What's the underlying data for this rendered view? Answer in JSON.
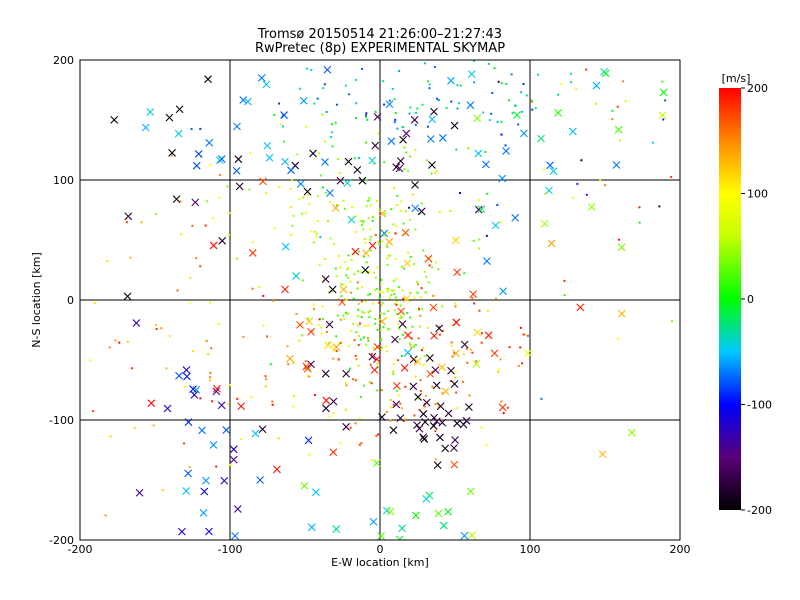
{
  "chart_data": {
    "type": "scatter",
    "title": "Tromsø 20150514 21:26:00–21:27:43",
    "subtitle": "RwPretec (8p) EXPERIMENTAL SKYMAP",
    "xlabel": "E-W location [km]",
    "ylabel": "N-S location [km]",
    "xlim": [
      -200,
      200
    ],
    "ylim": [
      -200,
      200
    ],
    "xticks": [
      "-200",
      "-100",
      "0",
      "100",
      "200"
    ],
    "yticks": [
      "-200",
      "-100",
      "0",
      "100",
      "200"
    ],
    "grid": true,
    "colorbar": {
      "label": "[m/s]",
      "range": [
        -200,
        200
      ],
      "ticks": [
        "200",
        "100",
        "0",
        "-100",
        "-200"
      ],
      "colormap": "rainbow: black-purple-blue-cyan-green-yellow-orange-red"
    },
    "marker_types": [
      "x (large cross)",
      "dot (small marker)"
    ],
    "clusters": [
      {
        "marker": "dot",
        "count": 160,
        "cx": 0,
        "cy": 40,
        "sx": 25,
        "sy": 45,
        "vmin": 10,
        "vmax": 80
      },
      {
        "marker": "dot",
        "count": 90,
        "cx": -5,
        "cy": -15,
        "sx": 20,
        "sy": 25,
        "vmin": -10,
        "vmax": 90
      },
      {
        "marker": "dot",
        "count": 110,
        "cx": 20,
        "cy": 165,
        "sx": 55,
        "sy": 25,
        "vmin": -90,
        "vmax": 10
      },
      {
        "marker": "dot",
        "count": 55,
        "cx": -60,
        "cy": 80,
        "sx": 40,
        "sy": 40,
        "vmin": 30,
        "vmax": 120
      },
      {
        "marker": "dot",
        "count": 110,
        "cx": -15,
        "cy": -60,
        "sx": 55,
        "sy": 35,
        "vmin": 80,
        "vmax": 180
      },
      {
        "marker": "dot",
        "count": 70,
        "cx": 40,
        "cy": -40,
        "sx": 45,
        "sy": 40,
        "vmin": 140,
        "vmax": 200
      },
      {
        "marker": "dot",
        "count": 55,
        "cx": 130,
        "cy": 110,
        "sx": 60,
        "sy": 70,
        "vmin": -200,
        "vmax": 200
      },
      {
        "marker": "dot",
        "count": 45,
        "cx": -150,
        "cy": -50,
        "sx": 35,
        "sy": 80,
        "vmin": 100,
        "vmax": 200
      },
      {
        "marker": "x",
        "count": 28,
        "cx": 35,
        "cy": -100,
        "sx": 15,
        "sy": 18,
        "vmin": -200,
        "vmax": -170
      },
      {
        "marker": "x",
        "count": 22,
        "cx": 0,
        "cy": -50,
        "sx": 35,
        "sy": 45,
        "vmin": -200,
        "vmax": -160
      },
      {
        "marker": "x",
        "count": 22,
        "cx": -10,
        "cy": 120,
        "sx": 45,
        "sy": 35,
        "vmin": -200,
        "vmax": -150
      },
      {
        "marker": "x",
        "count": 12,
        "cx": -120,
        "cy": 100,
        "sx": 30,
        "sy": 50,
        "vmin": -200,
        "vmax": -160
      },
      {
        "marker": "x",
        "count": 30,
        "cx": -70,
        "cy": 140,
        "sx": 50,
        "sy": 40,
        "vmin": -80,
        "vmax": -40
      },
      {
        "marker": "x",
        "count": 30,
        "cx": 50,
        "cy": 100,
        "sx": 60,
        "sy": 55,
        "vmin": -80,
        "vmax": -40
      },
      {
        "marker": "x",
        "count": 30,
        "cx": -110,
        "cy": -130,
        "sx": 25,
        "sy": 45,
        "vmin": -140,
        "vmax": -50
      },
      {
        "marker": "x",
        "count": 24,
        "cx": 10,
        "cy": -180,
        "sx": 30,
        "sy": 20,
        "vmin": -70,
        "vmax": 60
      },
      {
        "marker": "x",
        "count": 18,
        "cx": 10,
        "cy": 10,
        "sx": 35,
        "sy": 40,
        "vmin": 110,
        "vmax": 140
      },
      {
        "marker": "x",
        "count": 24,
        "cx": 30,
        "cy": -40,
        "sx": 55,
        "sy": 40,
        "vmin": 170,
        "vmax": 200
      },
      {
        "marker": "x",
        "count": 14,
        "cx": 130,
        "cy": 0,
        "sx": 50,
        "sy": 90,
        "vmin": -60,
        "vmax": 200
      },
      {
        "marker": "x",
        "count": 14,
        "cx": -70,
        "cy": -40,
        "sx": 60,
        "sy": 70,
        "vmin": 170,
        "vmax": 200
      },
      {
        "marker": "x",
        "count": 12,
        "cx": 150,
        "cy": 160,
        "sx": 40,
        "sy": 30,
        "vmin": -60,
        "vmax": 100
      }
    ]
  }
}
